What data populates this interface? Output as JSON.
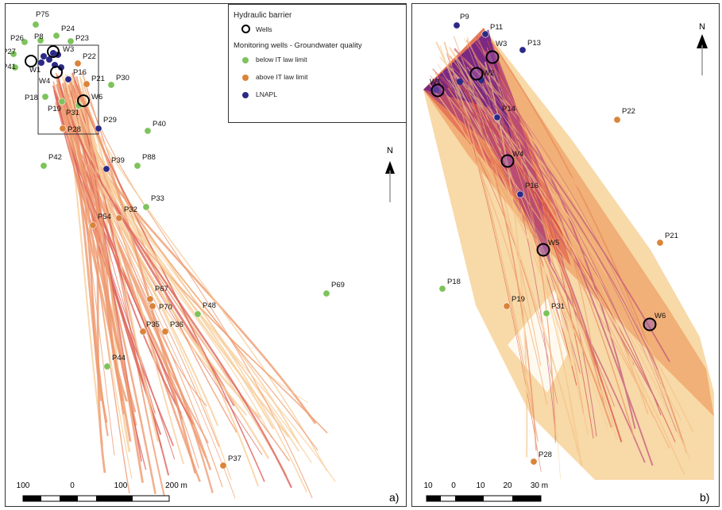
{
  "colors": {
    "below": "#7dc35b",
    "above": "#d9843a",
    "lnapl": "#2a2a86",
    "flow_light": "#f6c68a",
    "flow_mid": "#ec8a57",
    "flow_dark": "#d7473e",
    "flow_purple": "#7d2a8f"
  },
  "panel_a": {
    "label": "a)",
    "legend": {
      "title1": "Hydraulic barrier",
      "wells": "Wells",
      "title2": "Monitoring wells - Groundwater quality",
      "below": "below IT law limit",
      "above": "above IT law limit",
      "lnapl": "LNAPL"
    },
    "north": "N",
    "scale": {
      "ticks": [
        "100",
        "0",
        "100",
        "200 m"
      ]
    },
    "wells": [
      "W1",
      "W3",
      "W4",
      "W6"
    ],
    "points": [
      {
        "id": "P75",
        "type": "below"
      },
      {
        "id": "P24",
        "type": "below"
      },
      {
        "id": "P26",
        "type": "below"
      },
      {
        "id": "P8",
        "type": "below"
      },
      {
        "id": "P23",
        "type": "below"
      },
      {
        "id": "P27",
        "type": "below"
      },
      {
        "id": "P41",
        "type": "below"
      },
      {
        "id": "P22",
        "type": "above"
      },
      {
        "id": "P30",
        "type": "below"
      },
      {
        "id": "P21",
        "type": "above"
      },
      {
        "id": "P16",
        "type": "lnapl"
      },
      {
        "id": "P18",
        "type": "below"
      },
      {
        "id": "P19",
        "type": "below"
      },
      {
        "id": "P31",
        "type": "below"
      },
      {
        "id": "P28",
        "type": "above"
      },
      {
        "id": "P29",
        "type": "lnapl"
      },
      {
        "id": "P40",
        "type": "below"
      },
      {
        "id": "P42",
        "type": "below"
      },
      {
        "id": "P39",
        "type": "lnapl"
      },
      {
        "id": "P88",
        "type": "below"
      },
      {
        "id": "P33",
        "type": "below"
      },
      {
        "id": "P32",
        "type": "above"
      },
      {
        "id": "P54",
        "type": "above"
      },
      {
        "id": "P67",
        "type": "above"
      },
      {
        "id": "P70",
        "type": "above"
      },
      {
        "id": "P69",
        "type": "below"
      },
      {
        "id": "P48",
        "type": "below"
      },
      {
        "id": "P35",
        "type": "above"
      },
      {
        "id": "P36",
        "type": "above"
      },
      {
        "id": "P44",
        "type": "below"
      },
      {
        "id": "P37",
        "type": "above"
      }
    ]
  },
  "panel_b": {
    "label": "b)",
    "north": "N",
    "scale": {
      "ticks": [
        "10",
        "0",
        "10",
        "20",
        "30 m"
      ]
    },
    "wells": [
      "W1",
      "W3",
      "W2",
      "W4",
      "W5",
      "W6"
    ],
    "points": [
      {
        "id": "P9",
        "type": "lnapl"
      },
      {
        "id": "P11",
        "type": "lnapl"
      },
      {
        "id": "P13",
        "type": "lnapl"
      },
      {
        "id": "P14",
        "type": "lnapl"
      },
      {
        "id": "P16",
        "type": "lnapl"
      },
      {
        "id": "P22",
        "type": "above"
      },
      {
        "id": "P21",
        "type": "above"
      },
      {
        "id": "P18",
        "type": "below"
      },
      {
        "id": "P19",
        "type": "above"
      },
      {
        "id": "P31",
        "type": "below"
      },
      {
        "id": "P28",
        "type": "above"
      }
    ]
  }
}
